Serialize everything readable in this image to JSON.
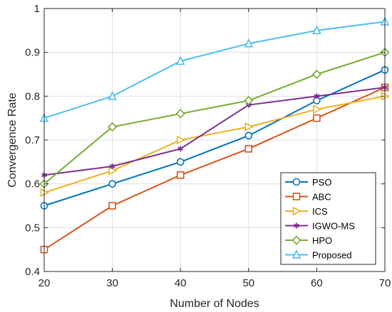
{
  "chart_data": {
    "type": "line",
    "x": [
      20,
      30,
      40,
      50,
      60,
      70
    ],
    "xlabel": "Number of Nodes",
    "ylabel": "Convergence Rate",
    "xlim": [
      20,
      70
    ],
    "ylim": [
      0.4,
      1.0
    ],
    "xticks": [
      "20",
      "30",
      "40",
      "50",
      "60",
      "70"
    ],
    "yticks": [
      "0.4",
      "0.5",
      "0.6",
      "0.7",
      "0.8",
      "0.9",
      "1"
    ],
    "grid": true,
    "legend_position": "bottom-right",
    "series": [
      {
        "name": "PSO",
        "values": [
          0.55,
          0.6,
          0.65,
          0.71,
          0.79,
          0.86
        ],
        "color": "#0072BD",
        "marker": "circle"
      },
      {
        "name": "ABC",
        "values": [
          0.45,
          0.55,
          0.62,
          0.68,
          0.75,
          0.82
        ],
        "color": "#D95319",
        "marker": "square"
      },
      {
        "name": "ICS",
        "values": [
          0.58,
          0.63,
          0.7,
          0.73,
          0.77,
          0.8
        ],
        "color": "#EDB120",
        "marker": "triangle-right"
      },
      {
        "name": "IGWO-MS",
        "values": [
          0.62,
          0.64,
          0.68,
          0.78,
          0.8,
          0.82
        ],
        "color": "#7E2F8E",
        "marker": "asterisk"
      },
      {
        "name": "HPO",
        "values": [
          0.6,
          0.73,
          0.76,
          0.79,
          0.85,
          0.9
        ],
        "color": "#77AC30",
        "marker": "diamond"
      },
      {
        "name": "Proposed",
        "values": [
          0.75,
          0.8,
          0.88,
          0.92,
          0.95,
          0.97
        ],
        "color": "#4DBEEE",
        "marker": "triangle-up"
      }
    ]
  }
}
